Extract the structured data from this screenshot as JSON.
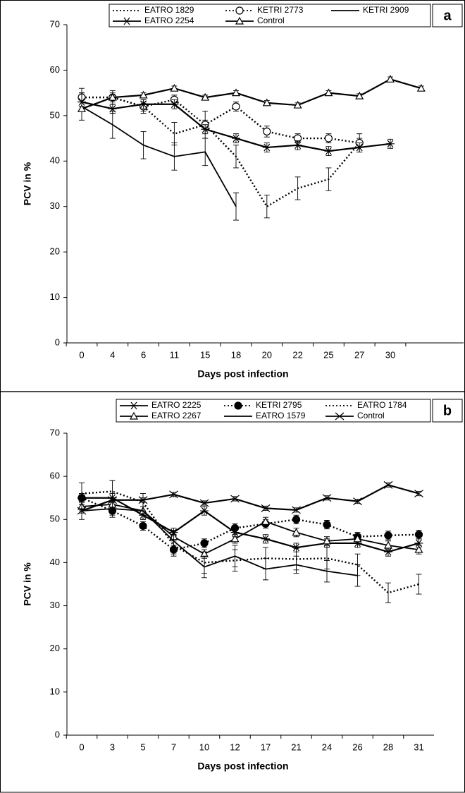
{
  "chart_data": [
    {
      "type": "line",
      "panel_label": "a",
      "ylabel": "PCV in %",
      "xlabel": "Days post infection",
      "categories": [
        0,
        4,
        6,
        11,
        15,
        18,
        20,
        22,
        25,
        27,
        30,
        null
      ],
      "ylim": [
        0,
        70
      ],
      "yticks": [
        0,
        10,
        20,
        30,
        40,
        50,
        60,
        70
      ],
      "legend": "top",
      "series": [
        {
          "name": "EATRO  1829",
          "color": "#000000",
          "dash": "dotted",
          "marker": "none",
          "values": [
            54,
            54,
            52,
            46,
            48,
            41,
            30,
            34,
            36,
            44,
            null,
            null
          ],
          "errors": [
            2,
            1.5,
            1.5,
            2.5,
            3,
            2.5,
            2.5,
            2.5,
            2.5,
            2,
            null,
            null
          ]
        },
        {
          "name": "KETRI  2773",
          "color": "#000000",
          "dash": "dotted",
          "marker": "circle",
          "values": [
            54,
            54,
            52,
            53.5,
            48,
            52,
            46.5,
            45,
            45,
            44,
            null,
            null
          ],
          "errors": [
            1,
            1,
            1,
            1,
            1,
            1,
            1.2,
            1,
            1,
            1,
            null,
            null
          ]
        },
        {
          "name": "KETRI  2909",
          "color": "#000000",
          "dash": "solid",
          "marker": "none",
          "values": [
            52,
            48,
            43.5,
            41,
            42,
            30,
            null,
            null,
            null,
            null,
            null,
            null
          ],
          "errors": [
            3,
            3,
            3,
            3,
            3,
            3,
            null,
            null,
            null,
            null,
            null,
            null
          ]
        },
        {
          "name": "EATRO  2254",
          "color": "#000000",
          "dash": "solid",
          "marker": "asterisk",
          "values": [
            53,
            51.5,
            52.5,
            52.5,
            47,
            45,
            43,
            43.5,
            42.2,
            43,
            43.8,
            null
          ],
          "errors": [
            2,
            1,
            1,
            1,
            1,
            1,
            1,
            1,
            1,
            1,
            1,
            null
          ]
        },
        {
          "name": "Control",
          "color": "#000000",
          "dash": "solid",
          "marker": "triangle",
          "values": [
            51.5,
            54,
            54.5,
            56,
            54,
            55,
            52.8,
            52.3,
            55,
            54.3,
            58,
            56
          ],
          "errors": [
            0.5,
            0.5,
            0.5,
            0.5,
            0.5,
            0.5,
            0.5,
            0.5,
            0.5,
            0.5,
            0.5,
            0.5
          ]
        }
      ]
    },
    {
      "type": "line",
      "panel_label": "b",
      "ylabel": "PCV in %",
      "xlabel": "Days post infection",
      "categories": [
        0,
        3,
        5,
        7,
        10,
        12,
        17,
        21,
        24,
        26,
        28,
        31
      ],
      "ylim": [
        0,
        70
      ],
      "yticks": [
        0,
        10,
        20,
        30,
        40,
        50,
        60,
        70
      ],
      "legend": "top",
      "series": [
        {
          "name": "EATRO 2225",
          "color": "#000000",
          "dash": "solid",
          "marker": "asterisk",
          "values": [
            55,
            55,
            51,
            47,
            52,
            47,
            45.5,
            43.5,
            44.5,
            44.5,
            42.5,
            44.5
          ],
          "errors": [
            1,
            1,
            1,
            1,
            1,
            1,
            1,
            1,
            1,
            1,
            1,
            1
          ]
        },
        {
          "name": "KETRI 2795",
          "color": "#000000",
          "dash": "dotted",
          "marker": "circle-filled",
          "values": [
            55,
            52,
            48.5,
            43,
            44.5,
            48,
            49,
            50,
            48.8,
            46,
            46.3,
            46.5
          ],
          "errors": [
            1,
            1,
            1,
            1,
            1,
            1,
            1,
            1,
            1,
            1,
            1,
            1
          ]
        },
        {
          "name": "EATRO 1784",
          "color": "#000000",
          "dash": "dotted",
          "marker": "none",
          "values": [
            56,
            56.5,
            54,
            44,
            40,
            40.5,
            41,
            40.8,
            41,
            39.5,
            33,
            35
          ],
          "errors": [
            2.5,
            2.5,
            2,
            2.5,
            2.5,
            2.5,
            2.5,
            2.5,
            2.5,
            2.5,
            2.3,
            2.3
          ]
        },
        {
          "name": "EATRO 2267",
          "color": "#000000",
          "dash": "solid",
          "marker": "triangle",
          "values": [
            53,
            53.5,
            52,
            46,
            42,
            45.5,
            49.5,
            47,
            45,
            45.5,
            44,
            43
          ],
          "errors": [
            1,
            1,
            1,
            1,
            1,
            1,
            1,
            1,
            1,
            1,
            1,
            1
          ]
        },
        {
          "name": "EATRO 1579",
          "color": "#000000",
          "dash": "solid",
          "marker": "none",
          "values": [
            52,
            52.5,
            52,
            45,
            39,
            41.5,
            38.5,
            39.5,
            38,
            37,
            null,
            null
          ],
          "errors": [
            2,
            2,
            2,
            2.5,
            2.5,
            2.5,
            2.5,
            2,
            2.5,
            2.5,
            null,
            null
          ]
        },
        {
          "name": "Control",
          "color": "#000000",
          "dash": "solid",
          "marker": "x",
          "values": [
            52,
            54.5,
            54.5,
            55.8,
            53.8,
            54.8,
            52.6,
            52.2,
            55,
            54.2,
            58,
            56
          ],
          "errors": [
            0.5,
            0.5,
            0.5,
            0.5,
            0.5,
            0.5,
            0.5,
            0.5,
            0.5,
            0.5,
            0.5,
            0.5
          ]
        }
      ]
    }
  ]
}
